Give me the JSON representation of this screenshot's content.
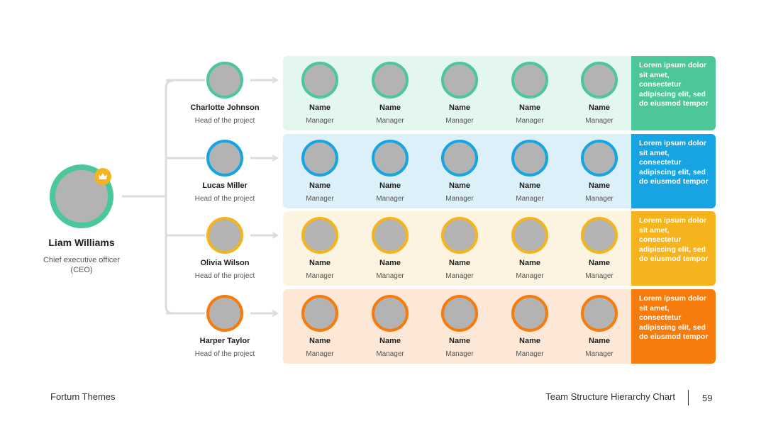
{
  "ceo": {
    "name": "Liam Williams",
    "title": "Chief executive officer (CEO)",
    "ring_color": "#4cc79a",
    "badge_color": "#f5b41e",
    "badge_icon": "crown-icon"
  },
  "teams": [
    {
      "lead_name": "Charlotte Johnson",
      "lead_title": "Head of the project",
      "accent": "#4cc79a",
      "band_color": "#e3f6ef",
      "members": [
        {
          "name": "Name",
          "role": "Manager"
        },
        {
          "name": "Name",
          "role": "Manager"
        },
        {
          "name": "Name",
          "role": "Manager"
        },
        {
          "name": "Name",
          "role": "Manager"
        },
        {
          "name": "Name",
          "role": "Manager"
        }
      ],
      "description": "Lorem ipsum dolor sit amet, consectetur adipiscing elit, sed do eiusmod tempor"
    },
    {
      "lead_name": "Lucas Miller",
      "lead_title": "Head of the project",
      "accent": "#16a5e2",
      "band_color": "#dcf0f9",
      "members": [
        {
          "name": "Name",
          "role": "Manager"
        },
        {
          "name": "Name",
          "role": "Manager"
        },
        {
          "name": "Name",
          "role": "Manager"
        },
        {
          "name": "Name",
          "role": "Manager"
        },
        {
          "name": "Name",
          "role": "Manager"
        }
      ],
      "description": "Lorem ipsum dolor sit amet, consectetur adipiscing elit, sed do eiusmod tempor"
    },
    {
      "lead_name": "Olivia Wilson",
      "lead_title": "Head of the project",
      "accent": "#f5b41e",
      "band_color": "#fdf3e1",
      "members": [
        {
          "name": "Name",
          "role": "Manager"
        },
        {
          "name": "Name",
          "role": "Manager"
        },
        {
          "name": "Name",
          "role": "Manager"
        },
        {
          "name": "Name",
          "role": "Manager"
        },
        {
          "name": "Name",
          "role": "Manager"
        }
      ],
      "description": "Lorem ipsum dolor sit amet, consectetur adipiscing elit, sed do eiusmod tempor"
    },
    {
      "lead_name": "Harper Taylor",
      "lead_title": "Head of the project",
      "accent": "#f57c0c",
      "band_color": "#fde8d8",
      "members": [
        {
          "name": "Name",
          "role": "Manager"
        },
        {
          "name": "Name",
          "role": "Manager"
        },
        {
          "name": "Name",
          "role": "Manager"
        },
        {
          "name": "Name",
          "role": "Manager"
        },
        {
          "name": "Name",
          "role": "Manager"
        }
      ],
      "description": "Lorem ipsum dolor sit amet, consectetur adipiscing elit, sed do eiusmod tempor"
    }
  ],
  "connector_color": "#dcdcdc",
  "footer": {
    "brand": "Fortum Themes",
    "slide_title": "Team Structure Hierarchy Chart",
    "page_number": "59"
  }
}
